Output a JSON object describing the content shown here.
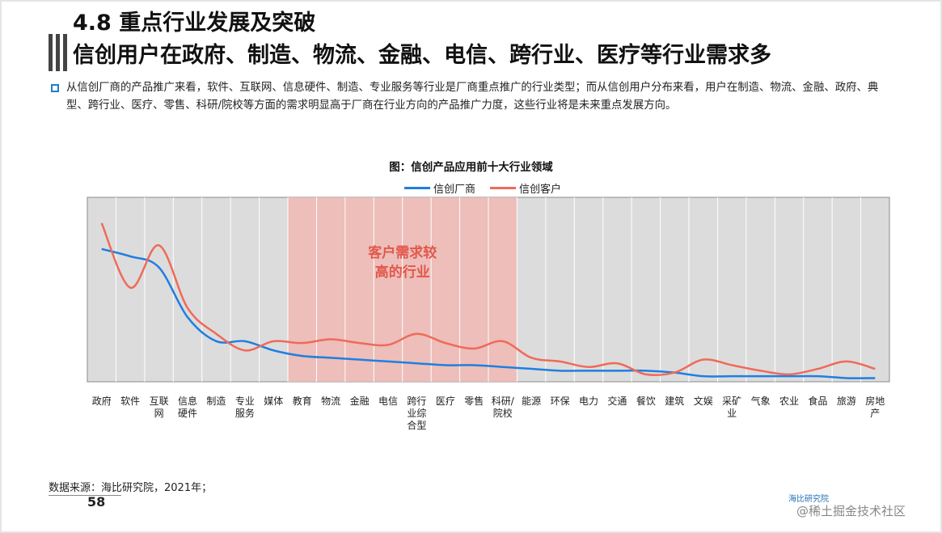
{
  "header": {
    "title_line1": "4.8 重点行业发展及突破",
    "title_line2": "信创用户在政府、制造、物流、金融、电信、跨行业、医疗等行业需求多"
  },
  "bullet": {
    "text": "从信创厂商的产品推广来看，软件、互联网、信息硬件、制造、专业服务等行业是厂商重点推广的行业类型；而从信创用户分布来看，用户在制造、物流、金融、政府、典型、跨行业、医疗、零售、科研/院校等方面的需求明显高于厂商在行业方向的产品推广力度，这些行业将是未来重点发展方向。"
  },
  "chart_data": {
    "type": "line",
    "title": "图：信创产品应用前十大行业领域",
    "categories": [
      "政府",
      "软件",
      "互联网",
      "信息硬件",
      "制造",
      "专业服务",
      "媒体",
      "教育",
      "物流",
      "金融",
      "电信",
      "跨行业综合型",
      "医疗",
      "零售",
      "科研/院校",
      "能源",
      "环保",
      "电力",
      "交通",
      "餐饮",
      "建筑",
      "文娱",
      "采矿业",
      "气象",
      "农业",
      "食品",
      "旅游",
      "房地产"
    ],
    "category_labels": [
      [
        "政府"
      ],
      [
        "软件"
      ],
      [
        "互联",
        "网"
      ],
      [
        "信息",
        "硬件"
      ],
      [
        "制造"
      ],
      [
        "专业",
        "服务"
      ],
      [
        "媒体"
      ],
      [
        "教育"
      ],
      [
        "物流"
      ],
      [
        "金融"
      ],
      [
        "电信"
      ],
      [
        "跨行",
        "业综",
        "合型"
      ],
      [
        "医疗"
      ],
      [
        "零售"
      ],
      [
        "科研/",
        "院校"
      ],
      [
        "能源"
      ],
      [
        "环保"
      ],
      [
        "电力"
      ],
      [
        "交通"
      ],
      [
        "餐饮"
      ],
      [
        "建筑"
      ],
      [
        "文娱"
      ],
      [
        "采矿",
        "业"
      ],
      [
        "气象"
      ],
      [
        "农业"
      ],
      [
        "食品"
      ],
      [
        "旅游"
      ],
      [
        "房地",
        "产"
      ]
    ],
    "series": [
      {
        "name": "信创厂商",
        "color": "#1f7fe0",
        "values": [
          72,
          68,
          62,
          35,
          22,
          22,
          17,
          14,
          13,
          12,
          11,
          10,
          9,
          9,
          8,
          7,
          6,
          6,
          6,
          6,
          5,
          3,
          3,
          3,
          3,
          3,
          2,
          2
        ]
      },
      {
        "name": "信创客户",
        "color": "#f06a5a",
        "values": [
          86,
          51,
          74,
          40,
          26,
          17,
          22,
          21,
          23,
          21,
          20,
          26,
          21,
          18,
          22,
          13,
          11,
          8,
          10,
          4,
          5,
          12,
          9,
          6,
          4,
          7,
          11,
          7
        ]
      }
    ],
    "ylim": [
      0,
      100
    ],
    "grid": true,
    "legend_position": "top-center",
    "highlight": {
      "label_lines": [
        "客户需求较",
        "高的行业"
      ],
      "from_category": "教育",
      "to_category": "科研/院校"
    }
  },
  "footer": {
    "source": "数据来源：海比研究院，2021年；",
    "page_number": "58",
    "brand": "海比研究院",
    "community": "@稀土掘金技术社区"
  },
  "colors": {
    "accent_blue": "#1f7fc9",
    "plot_bg": "#dcdcdc",
    "highlight_fill": "#f0b8b4",
    "highlight_text": "#e2584a"
  }
}
